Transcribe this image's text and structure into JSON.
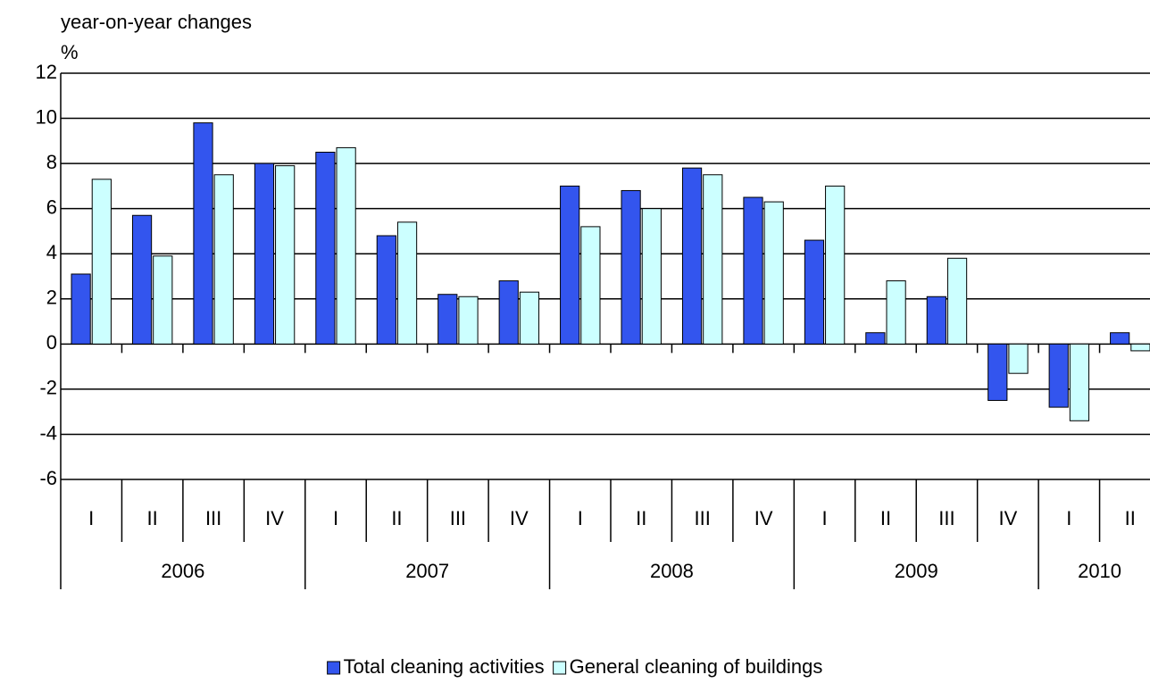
{
  "chart_data": {
    "type": "bar",
    "y_label_top": "year-on-year changes",
    "y_label": "%",
    "groups": [
      {
        "label": "2006",
        "categories": [
          "I",
          "II",
          "III",
          "IV"
        ]
      },
      {
        "label": "2007",
        "categories": [
          "I",
          "II",
          "III",
          "IV"
        ]
      },
      {
        "label": "2008",
        "categories": [
          "I",
          "II",
          "III",
          "IV"
        ]
      },
      {
        "label": "2009",
        "categories": [
          "I",
          "II",
          "III",
          "IV"
        ]
      },
      {
        "label": "2010",
        "categories": [
          "I",
          "II"
        ]
      }
    ],
    "series": [
      {
        "name": "Total cleaning activities",
        "color": "#3355ee",
        "values": [
          3.1,
          5.7,
          9.8,
          8.0,
          8.5,
          4.8,
          2.2,
          2.8,
          7.0,
          6.8,
          7.8,
          6.5,
          4.6,
          0.5,
          2.1,
          -2.5,
          -2.8,
          0.5
        ]
      },
      {
        "name": "General cleaning of buildings",
        "color": "#ccffff",
        "values": [
          7.3,
          3.9,
          7.5,
          7.9,
          8.7,
          5.4,
          2.1,
          2.3,
          5.2,
          6.0,
          7.5,
          6.3,
          7.0,
          2.8,
          3.8,
          -1.3,
          -3.4,
          -0.3
        ]
      }
    ],
    "ylim": [
      -6,
      12
    ],
    "yticks": [
      -6,
      -4,
      -2,
      0,
      2,
      4,
      6,
      8,
      10,
      12
    ],
    "grid": true,
    "legend": "bottom"
  }
}
